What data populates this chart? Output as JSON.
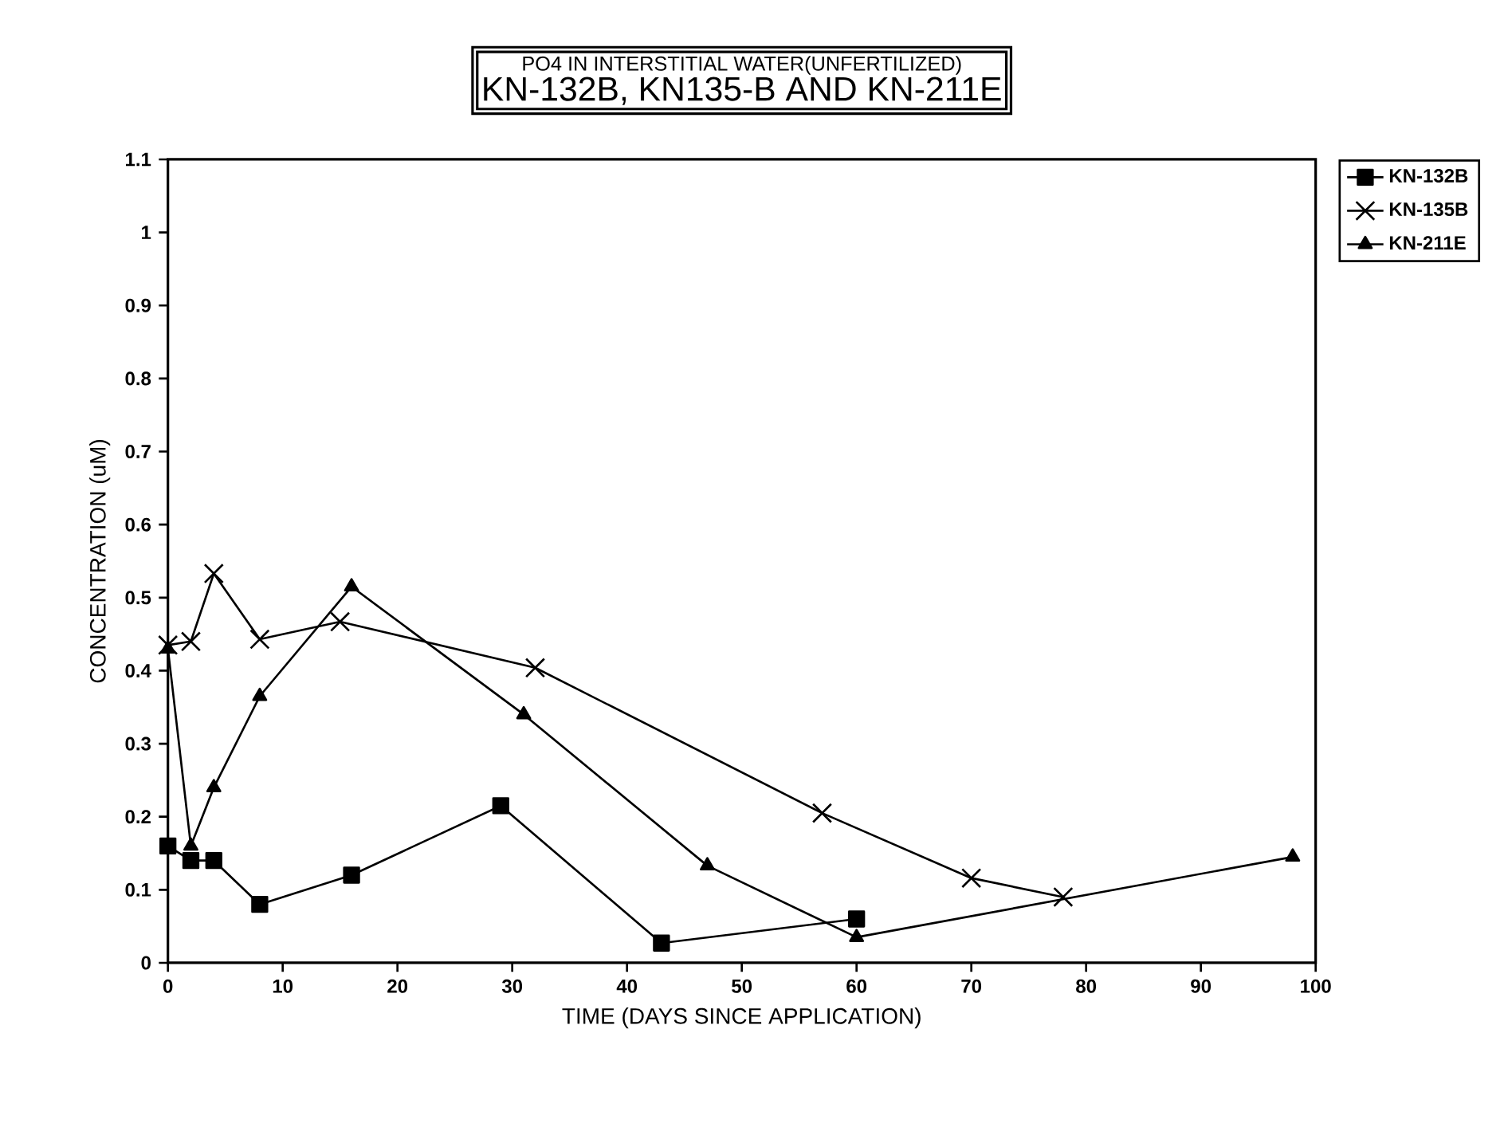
{
  "chart_data": {
    "type": "line",
    "title": "PO4 IN INTERSTITIAL WATER(UNFERTILIZED)",
    "subtitle": "KN-132B, KN135-B AND KN-211E",
    "xlabel": "TIME (DAYS SINCE APPLICATION)",
    "ylabel": "CONCENTRATION (uM)",
    "xlim": [
      0,
      100
    ],
    "xticks": [
      0,
      10,
      20,
      30,
      40,
      50,
      60,
      70,
      80,
      90,
      100
    ],
    "ylim": [
      0,
      1.1
    ],
    "yticks": [
      0,
      0.1,
      0.2,
      0.3,
      0.4,
      0.5,
      0.6,
      0.7,
      0.8,
      0.9,
      1,
      1.1
    ],
    "grid": false,
    "legend": "right",
    "line_style": "solid",
    "series": [
      {
        "name": "KN-132B",
        "color": "#000000",
        "marker": "square",
        "x": [
          0,
          2,
          4,
          8,
          16,
          29,
          43,
          60
        ],
        "values": [
          0.16,
          0.14,
          0.14,
          0.08,
          0.12,
          0.215,
          0.027,
          0.06
        ]
      },
      {
        "name": "KN-135B",
        "color": "#000000",
        "marker": "cross",
        "x": [
          0,
          2,
          4,
          8,
          15,
          32,
          57,
          70,
          78
        ],
        "values": [
          0.435,
          0.44,
          0.533,
          0.443,
          0.467,
          0.404,
          0.205,
          0.116,
          0.09
        ]
      },
      {
        "name": "KN-211E",
        "color": "#000000",
        "marker": "triangle",
        "x": [
          0,
          2,
          4,
          8,
          16,
          31,
          47,
          60,
          98
        ],
        "values": [
          0.43,
          0.16,
          0.24,
          0.365,
          0.515,
          0.34,
          0.133,
          0.035,
          0.145
        ]
      }
    ]
  }
}
